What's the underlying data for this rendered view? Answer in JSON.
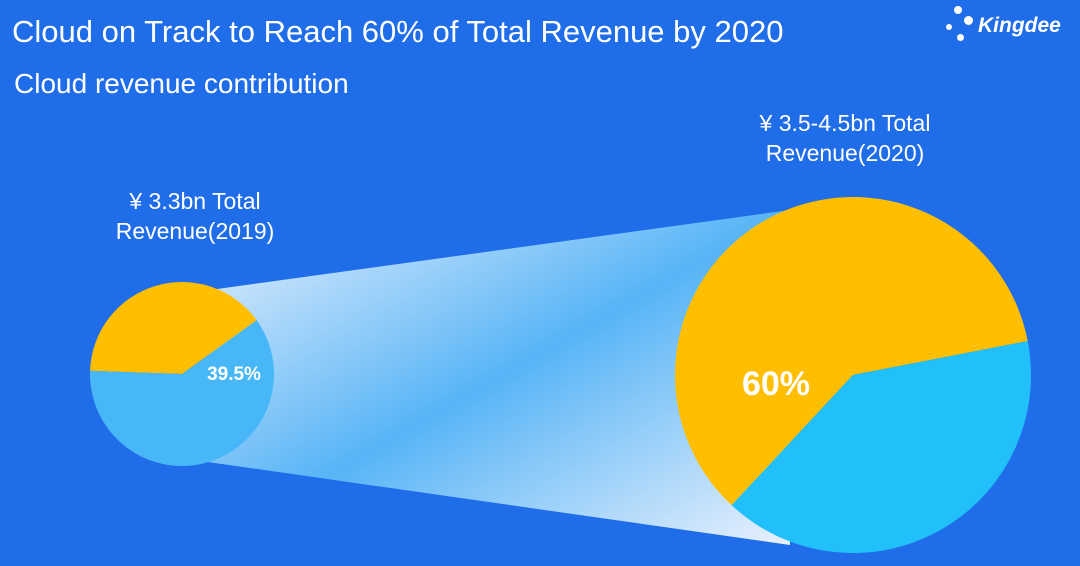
{
  "header": {
    "title": "Cloud on Track to Reach 60% of Total Revenue by 2020",
    "subtitle": "Cloud revenue contribution"
  },
  "logo": {
    "text": "Kingdee"
  },
  "colors": {
    "background": "#1f6de9",
    "cloud_slice": "#ffbe00",
    "other_slice_2019": "#48b7f7",
    "other_slice_2020": "#22c0fb"
  },
  "chart_data": [
    {
      "type": "pie",
      "title": "",
      "label_lines": [
        "¥ 3.3bn Total",
        "Revenue(2019)"
      ],
      "slices": [
        {
          "name": "",
          "value": 39.5,
          "label": "39.5%"
        },
        {
          "name": "",
          "value": 60.5,
          "label": ""
        }
      ]
    },
    {
      "type": "pie",
      "title": "",
      "label_lines": [
        "¥ 3.5-4.5bn Total",
        "Revenue(2020)"
      ],
      "slices": [
        {
          "name": "",
          "value": 60,
          "label": "60%"
        },
        {
          "name": "",
          "value": 40,
          "label": ""
        }
      ]
    }
  ]
}
